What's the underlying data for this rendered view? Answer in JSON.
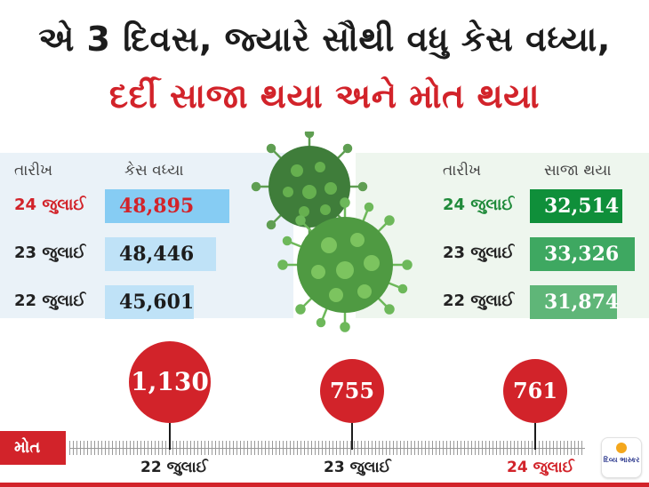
{
  "title": {
    "line1": "એ 3 દિવસ, જ્યારે સૌથી વધુ કેસ વધ્યા,",
    "line2": "દર્દી સાજા થયા અને મોત થયા"
  },
  "cases": {
    "date_header": "તારીખ",
    "value_header": "કેસ વધ્યા",
    "rows": [
      {
        "date": "24 જુલાઈ",
        "value": "48,895"
      },
      {
        "date": "23 જુલાઈ",
        "value": "48,446"
      },
      {
        "date": "22 જુલાઈ",
        "value": "45,601"
      }
    ]
  },
  "recovered": {
    "date_header": "તારીખ",
    "value_header": "સાજા થયા",
    "rows": [
      {
        "date": "24 જુલાઈ",
        "value": "32,514"
      },
      {
        "date": "23 જુલાઈ",
        "value": "33,326"
      },
      {
        "date": "22 જુલાઈ",
        "value": "31,874"
      }
    ]
  },
  "deaths": {
    "label": "મોત",
    "points": [
      {
        "date": "22 જુલાઈ",
        "value": "1,130"
      },
      {
        "date": "23 જુલાઈ",
        "value": "755"
      },
      {
        "date": "24 જુલાઈ",
        "value": "761"
      }
    ]
  },
  "logo": {
    "text": "દિવ્ય ભાસ્કર"
  },
  "colors": {
    "red": "#d2232a",
    "blue": "#86ccf3",
    "green": "#0f8f3a"
  },
  "icons": [
    "coronavirus-icon",
    "divya-bhaskar-logo"
  ]
}
